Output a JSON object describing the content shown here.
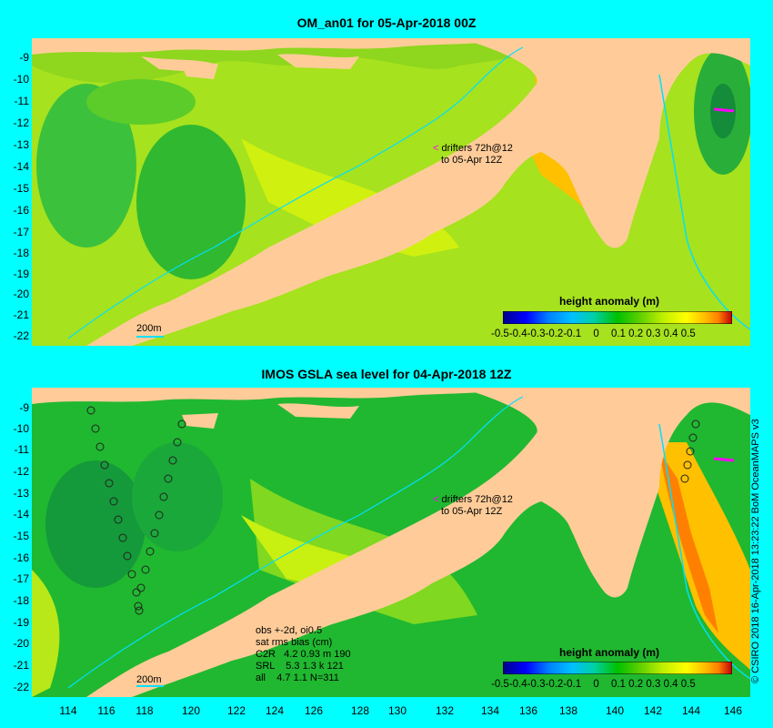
{
  "top_panel": {
    "title": "OM_an01 for 05-Apr-2018 00Z",
    "y_ticks": [
      "-9",
      "-10",
      "-11",
      "-12",
      "-13",
      "-14",
      "-15",
      "-16",
      "-17",
      "-18",
      "-19",
      "-20",
      "-21",
      "-22"
    ],
    "legend_title": "height anomaly (m)",
    "legend_ticks": [
      "-0.5",
      "-0.4",
      "-0.3",
      "-0.2",
      "-0.1",
      "0",
      "0.1",
      "0.2",
      "0.3",
      "0.4",
      "0.5"
    ],
    "drifters_line1": "drifters 72h@12",
    "drifters_line2": "to 05-Apr 12Z",
    "contour_label": "200m"
  },
  "bottom_panel": {
    "title": "IMOS GSLA sea level  for 04-Apr-2018 12Z",
    "y_ticks": [
      "-9",
      "-10",
      "-11",
      "-12",
      "-13",
      "-14",
      "-15",
      "-16",
      "-17",
      "-18",
      "-19",
      "-20",
      "-21",
      "-22"
    ],
    "x_ticks": [
      "114",
      "116",
      "118",
      "120",
      "122",
      "124",
      "126",
      "128",
      "130",
      "132",
      "134",
      "136",
      "138",
      "140",
      "142",
      "144",
      "146"
    ],
    "legend_title": "height anomaly (m)",
    "legend_ticks": [
      "-0.5",
      "-0.4",
      "-0.3",
      "-0.2",
      "-0.1",
      "0",
      "0.1",
      "0.2",
      "0.3",
      "0.4",
      "0.5"
    ],
    "drifters_line1": "drifters 72h@12",
    "drifters_line2": "to 05-Apr 12Z",
    "contour_label": "200m",
    "stats_line1": "obs +-2d, oi0.5",
    "stats_line2": "sat rms bias (cm)",
    "stats_line3": "C2R   4.2 0.93 m 190",
    "stats_line4": "SRL    5.3 1.3 k 121",
    "stats_line5": "all    4.7 1.1 N=311"
  },
  "credit": "© CSIRO 2018  16-Apr-2018 13:23:22 BoM OceanMAPS v3",
  "colors": {
    "background": "#00ffff",
    "land": "#ffcc99",
    "colorbar": [
      "#00008b",
      "#0000ff",
      "#0080ff",
      "#00c0ff",
      "#00d0a0",
      "#00c000",
      "#60d000",
      "#c0f000",
      "#ffff00",
      "#ffc000",
      "#ff8000",
      "#c00000"
    ]
  }
}
